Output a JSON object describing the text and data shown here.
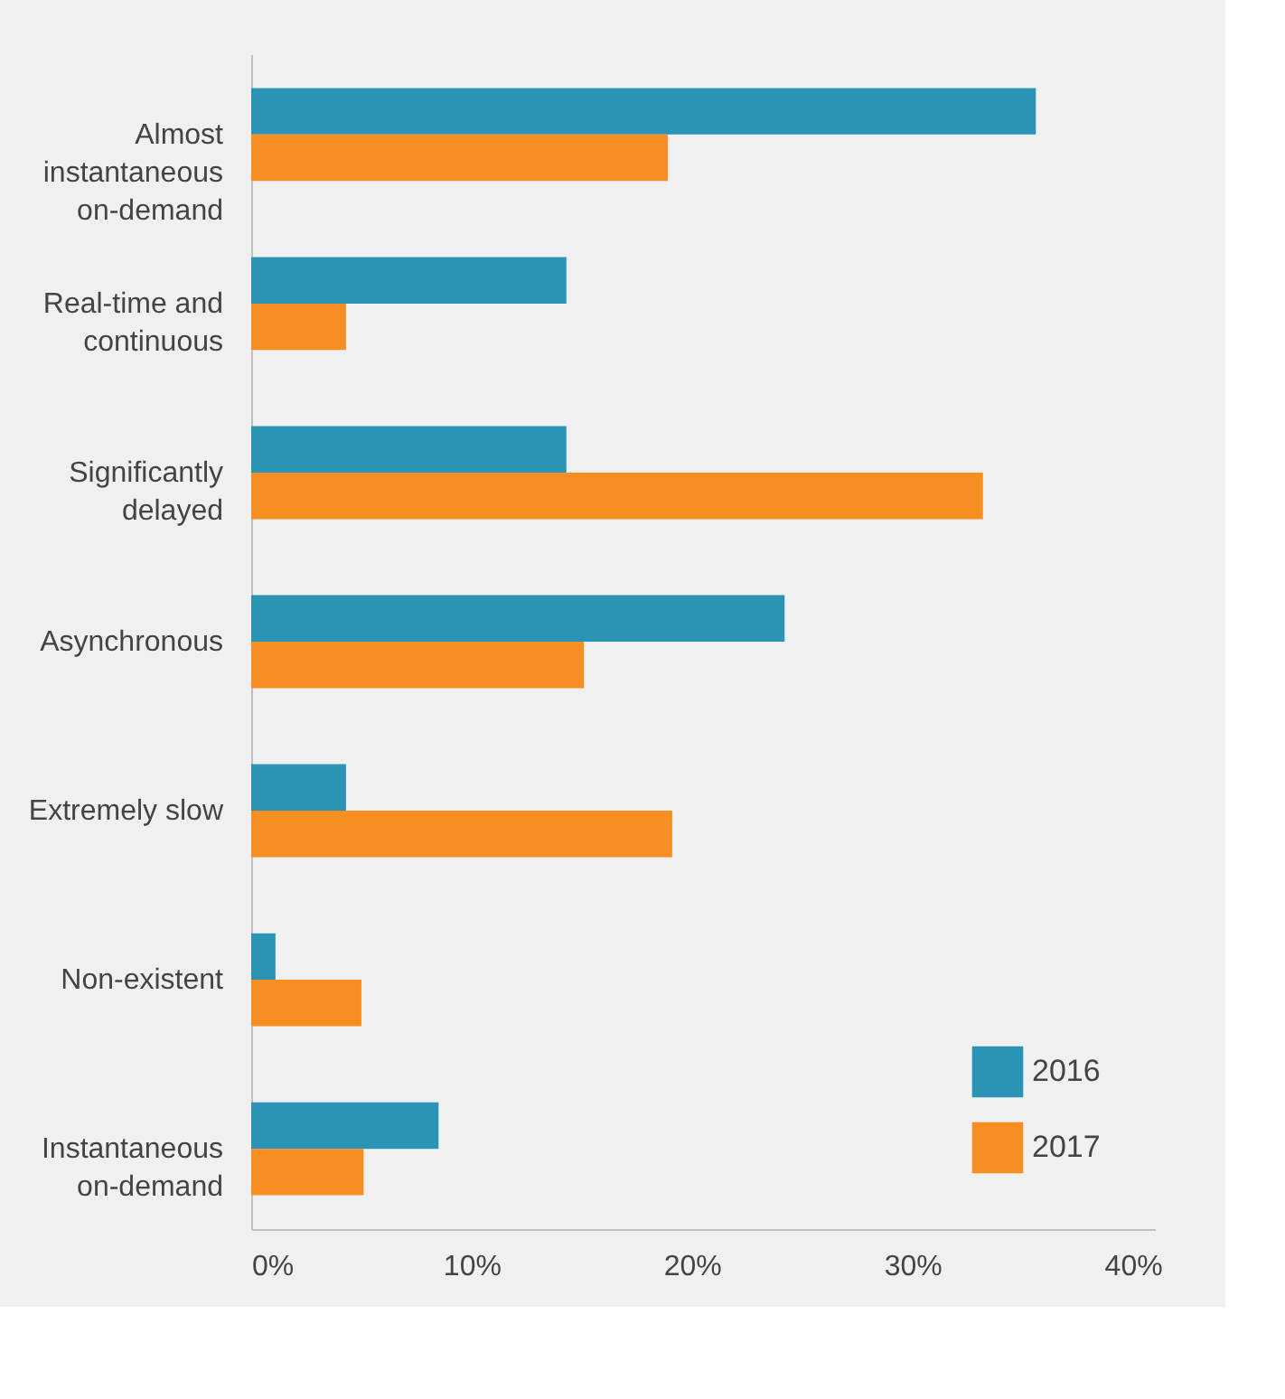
{
  "chart_data": {
    "type": "bar",
    "orientation": "horizontal",
    "categories": [
      "Almost instantaneous on-demand",
      "Real-time and continuous",
      "Significantly delayed",
      "Asynchronous",
      "Extremely slow",
      "Non-existent",
      "Instantaneous on-demand"
    ],
    "series": [
      {
        "name": "2016",
        "color": "#2a93b6",
        "values": [
          35.6,
          14.3,
          14.3,
          24.2,
          4.3,
          1.1,
          8.5
        ]
      },
      {
        "name": "2017",
        "color": "#f78e22",
        "values": [
          18.9,
          4.3,
          33.2,
          15.1,
          19.1,
          5.0,
          5.1
        ]
      }
    ],
    "xlim": [
      0,
      41
    ],
    "xticks": [
      {
        "value": 0,
        "label": "0%"
      },
      {
        "value": 10,
        "label": "10%"
      },
      {
        "value": 20,
        "label": "20%"
      },
      {
        "value": 30,
        "label": "30%"
      },
      {
        "value": 40,
        "label": "40%"
      }
    ],
    "grid": false,
    "legend": "bottom right"
  }
}
